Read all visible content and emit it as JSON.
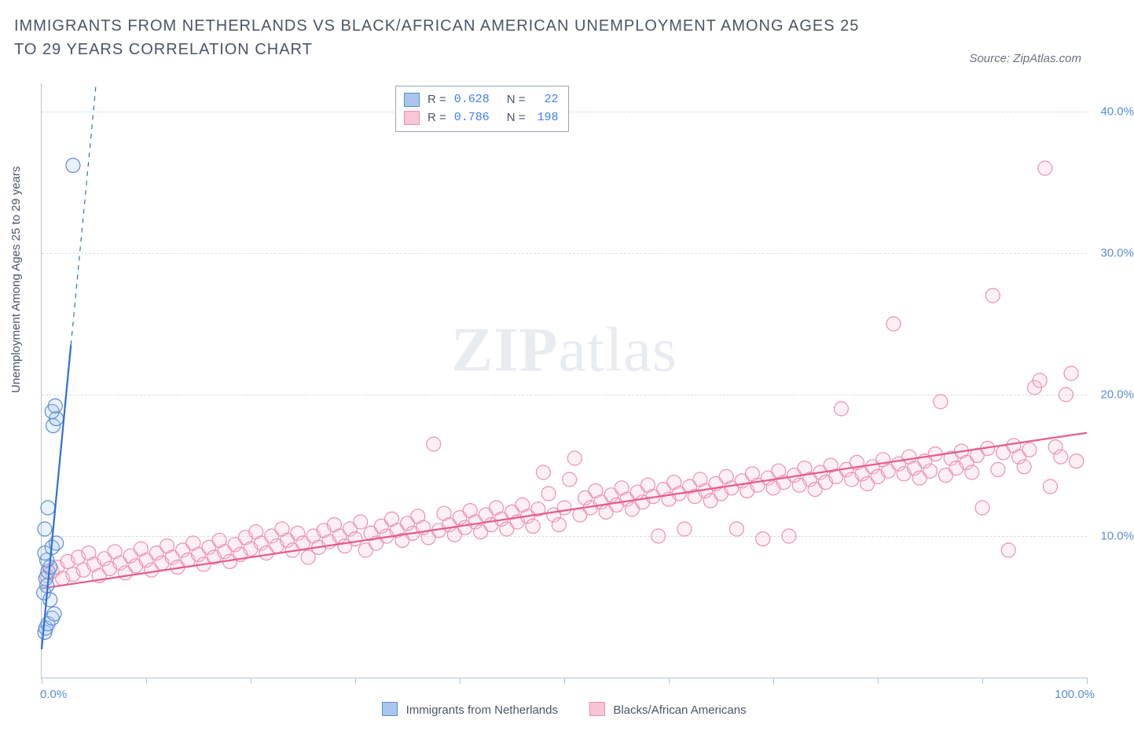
{
  "title": "IMMIGRANTS FROM NETHERLANDS VS BLACK/AFRICAN AMERICAN UNEMPLOYMENT AMONG AGES 25 TO 29 YEARS CORRELATION CHART",
  "source": "Source: ZipAtlas.com",
  "ylabel": "Unemployment Among Ages 25 to 29 years",
  "watermark_a": "ZIP",
  "watermark_b": "atlas",
  "chart": {
    "type": "scatter",
    "background_color": "#ffffff",
    "grid_color": "#d6dbe3",
    "axis_color": "#b6c2d4",
    "tick_label_color": "#5b8dd6",
    "text_color": "#4a5568",
    "xlim": [
      0,
      100
    ],
    "ylim": [
      0,
      42
    ],
    "yticks": [
      10,
      20,
      30,
      40
    ],
    "ytick_labels": [
      "10.0%",
      "20.0%",
      "30.0%",
      "40.0%"
    ],
    "xticks": [
      0,
      10,
      20,
      30,
      40,
      50,
      60,
      70,
      80,
      90,
      100
    ],
    "xtick_labels": {
      "0": "0.0%",
      "100": "100.0%"
    },
    "marker_radius": 9,
    "marker_fill_opacity": 0.25,
    "marker_stroke_width": 1.2,
    "line_width": 2.2,
    "series": [
      {
        "name": "Immigrants from Netherlands",
        "color_fill": "#a9c6ef",
        "color_stroke": "#5b8dd6",
        "line_color": "#2f6fd1",
        "R": "0.628",
        "N": "22",
        "trend": {
          "x1": 0,
          "y1": 2.0,
          "x2": 2.8,
          "y2": 23.5,
          "dash_to_y": 42
        },
        "points": [
          [
            0.3,
            3.2
          ],
          [
            0.4,
            3.5
          ],
          [
            0.6,
            3.8
          ],
          [
            1.0,
            4.2
          ],
          [
            1.2,
            4.5
          ],
          [
            0.2,
            6.0
          ],
          [
            0.4,
            7.0
          ],
          [
            0.6,
            7.5
          ],
          [
            0.8,
            7.8
          ],
          [
            0.5,
            8.3
          ],
          [
            0.3,
            8.8
          ],
          [
            1.0,
            9.2
          ],
          [
            1.4,
            9.5
          ],
          [
            0.3,
            10.5
          ],
          [
            0.6,
            12.0
          ],
          [
            1.1,
            17.8
          ],
          [
            1.4,
            18.3
          ],
          [
            1.0,
            18.8
          ],
          [
            1.3,
            19.2
          ],
          [
            3.0,
            36.2
          ],
          [
            0.8,
            5.5
          ],
          [
            0.5,
            6.5
          ]
        ]
      },
      {
        "name": "Blacks/African Americans",
        "color_fill": "#f7c5d4",
        "color_stroke": "#ef8fb0",
        "line_color": "#e75a8d",
        "R": "0.786",
        "N": "198",
        "trend": {
          "x1": 0,
          "y1": 6.3,
          "x2": 100,
          "y2": 17.3
        },
        "points": [
          [
            0.5,
            7.2
          ],
          [
            1.0,
            7.5
          ],
          [
            1.5,
            7.8
          ],
          [
            2.0,
            7.0
          ],
          [
            2.5,
            8.2
          ],
          [
            3.0,
            7.3
          ],
          [
            3.5,
            8.5
          ],
          [
            4.0,
            7.6
          ],
          [
            4.5,
            8.8
          ],
          [
            5.0,
            8.0
          ],
          [
            5.5,
            7.2
          ],
          [
            6.0,
            8.4
          ],
          [
            6.5,
            7.7
          ],
          [
            7.0,
            8.9
          ],
          [
            7.5,
            8.1
          ],
          [
            8.0,
            7.4
          ],
          [
            8.5,
            8.6
          ],
          [
            9.0,
            7.9
          ],
          [
            9.5,
            9.1
          ],
          [
            10.0,
            8.3
          ],
          [
            10.5,
            7.6
          ],
          [
            11.0,
            8.8
          ],
          [
            11.5,
            8.1
          ],
          [
            12.0,
            9.3
          ],
          [
            12.5,
            8.5
          ],
          [
            13.0,
            7.8
          ],
          [
            13.5,
            9.0
          ],
          [
            14.0,
            8.3
          ],
          [
            14.5,
            9.5
          ],
          [
            15.0,
            8.7
          ],
          [
            15.5,
            8.0
          ],
          [
            16.0,
            9.2
          ],
          [
            16.5,
            8.5
          ],
          [
            17.0,
            9.7
          ],
          [
            17.5,
            8.9
          ],
          [
            18.0,
            8.2
          ],
          [
            18.5,
            9.4
          ],
          [
            19.0,
            8.7
          ],
          [
            19.5,
            9.9
          ],
          [
            20.0,
            9.1
          ],
          [
            20.5,
            10.3
          ],
          [
            21.0,
            9.5
          ],
          [
            21.5,
            8.8
          ],
          [
            22.0,
            10.0
          ],
          [
            22.5,
            9.3
          ],
          [
            23.0,
            10.5
          ],
          [
            23.5,
            9.7
          ],
          [
            24.0,
            9.0
          ],
          [
            24.5,
            10.2
          ],
          [
            25.0,
            9.5
          ],
          [
            25.5,
            8.5
          ],
          [
            26.0,
            10.0
          ],
          [
            26.5,
            9.2
          ],
          [
            27.0,
            10.4
          ],
          [
            27.5,
            9.6
          ],
          [
            28.0,
            10.8
          ],
          [
            28.5,
            10.0
          ],
          [
            29.0,
            9.3
          ],
          [
            29.5,
            10.5
          ],
          [
            30.0,
            9.8
          ],
          [
            30.5,
            11.0
          ],
          [
            31.0,
            9.0
          ],
          [
            31.5,
            10.2
          ],
          [
            32.0,
            9.5
          ],
          [
            32.5,
            10.7
          ],
          [
            33.0,
            10.0
          ],
          [
            33.5,
            11.2
          ],
          [
            34.0,
            10.4
          ],
          [
            34.5,
            9.7
          ],
          [
            35.0,
            10.9
          ],
          [
            35.5,
            10.2
          ],
          [
            36.0,
            11.4
          ],
          [
            36.5,
            10.6
          ],
          [
            37.0,
            9.9
          ],
          [
            37.5,
            16.5
          ],
          [
            38.0,
            10.4
          ],
          [
            38.5,
            11.6
          ],
          [
            39.0,
            10.8
          ],
          [
            39.5,
            10.1
          ],
          [
            40.0,
            11.3
          ],
          [
            40.5,
            10.6
          ],
          [
            41.0,
            11.8
          ],
          [
            41.5,
            11.0
          ],
          [
            42.0,
            10.3
          ],
          [
            42.5,
            11.5
          ],
          [
            43.0,
            10.8
          ],
          [
            43.5,
            12.0
          ],
          [
            44.0,
            11.2
          ],
          [
            44.5,
            10.5
          ],
          [
            45.0,
            11.7
          ],
          [
            45.5,
            11.0
          ],
          [
            46.0,
            12.2
          ],
          [
            46.5,
            11.4
          ],
          [
            47.0,
            10.7
          ],
          [
            47.5,
            11.9
          ],
          [
            48.0,
            14.5
          ],
          [
            48.5,
            13.0
          ],
          [
            49.0,
            11.5
          ],
          [
            49.5,
            10.8
          ],
          [
            50.0,
            12.0
          ],
          [
            50.5,
            14.0
          ],
          [
            51.0,
            15.5
          ],
          [
            51.5,
            11.5
          ],
          [
            52.0,
            12.7
          ],
          [
            52.5,
            12.0
          ],
          [
            53.0,
            13.2
          ],
          [
            53.5,
            12.4
          ],
          [
            54.0,
            11.7
          ],
          [
            54.5,
            12.9
          ],
          [
            55.0,
            12.2
          ],
          [
            55.5,
            13.4
          ],
          [
            56.0,
            12.6
          ],
          [
            56.5,
            11.9
          ],
          [
            57.0,
            13.1
          ],
          [
            57.5,
            12.4
          ],
          [
            58.0,
            13.6
          ],
          [
            58.5,
            12.8
          ],
          [
            59.0,
            10.0
          ],
          [
            59.5,
            13.3
          ],
          [
            60.0,
            12.6
          ],
          [
            60.5,
            13.8
          ],
          [
            61.0,
            13.0
          ],
          [
            61.5,
            10.5
          ],
          [
            62.0,
            13.5
          ],
          [
            62.5,
            12.8
          ],
          [
            63.0,
            14.0
          ],
          [
            63.5,
            13.2
          ],
          [
            64.0,
            12.5
          ],
          [
            64.5,
            13.7
          ],
          [
            65.0,
            13.0
          ],
          [
            65.5,
            14.2
          ],
          [
            66.0,
            13.4
          ],
          [
            66.5,
            10.5
          ],
          [
            67.0,
            13.9
          ],
          [
            67.5,
            13.2
          ],
          [
            68.0,
            14.4
          ],
          [
            68.5,
            13.6
          ],
          [
            69.0,
            9.8
          ],
          [
            69.5,
            14.1
          ],
          [
            70.0,
            13.4
          ],
          [
            70.5,
            14.6
          ],
          [
            71.0,
            13.8
          ],
          [
            71.5,
            10.0
          ],
          [
            72.0,
            14.3
          ],
          [
            72.5,
            13.6
          ],
          [
            73.0,
            14.8
          ],
          [
            73.5,
            14.0
          ],
          [
            74.0,
            13.3
          ],
          [
            74.5,
            14.5
          ],
          [
            75.0,
            13.8
          ],
          [
            75.5,
            15.0
          ],
          [
            76.0,
            14.2
          ],
          [
            76.5,
            19.0
          ],
          [
            77.0,
            14.7
          ],
          [
            77.5,
            14.0
          ],
          [
            78.0,
            15.2
          ],
          [
            78.5,
            14.4
          ],
          [
            79.0,
            13.7
          ],
          [
            79.5,
            14.9
          ],
          [
            80.0,
            14.2
          ],
          [
            80.5,
            15.4
          ],
          [
            81.0,
            14.6
          ],
          [
            81.5,
            25.0
          ],
          [
            82.0,
            15.1
          ],
          [
            82.5,
            14.4
          ],
          [
            83.0,
            15.6
          ],
          [
            83.5,
            14.8
          ],
          [
            84.0,
            14.1
          ],
          [
            84.5,
            15.3
          ],
          [
            85.0,
            14.6
          ],
          [
            85.5,
            15.8
          ],
          [
            86.0,
            19.5
          ],
          [
            86.5,
            14.3
          ],
          [
            87.0,
            15.5
          ],
          [
            87.5,
            14.8
          ],
          [
            88.0,
            16.0
          ],
          [
            88.5,
            15.2
          ],
          [
            89.0,
            14.5
          ],
          [
            89.5,
            15.7
          ],
          [
            90.0,
            12.0
          ],
          [
            90.5,
            16.2
          ],
          [
            91.0,
            27.0
          ],
          [
            91.5,
            14.7
          ],
          [
            92.0,
            15.9
          ],
          [
            92.5,
            9.0
          ],
          [
            93.0,
            16.4
          ],
          [
            93.5,
            15.6
          ],
          [
            94.0,
            14.9
          ],
          [
            94.5,
            16.1
          ],
          [
            95.0,
            20.5
          ],
          [
            95.5,
            21.0
          ],
          [
            96.0,
            36.0
          ],
          [
            96.5,
            13.5
          ],
          [
            97.0,
            16.3
          ],
          [
            97.5,
            15.6
          ],
          [
            98.0,
            20.0
          ],
          [
            98.5,
            21.5
          ],
          [
            99.0,
            15.3
          ]
        ]
      }
    ]
  },
  "legend_top": {
    "r_label": "R =",
    "n_label": "N ="
  }
}
